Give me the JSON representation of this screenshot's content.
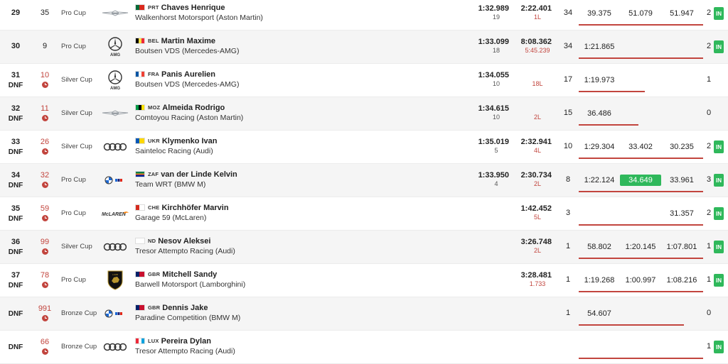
{
  "rows": [
    {
      "pos": "29",
      "dnf": "",
      "num": "35",
      "clock": false,
      "cup": "Pro Cup",
      "brand": "aston-martin",
      "cc": "PRT",
      "flag": [
        "#046a38",
        "#da291c"
      ],
      "name": "Chaves Henrique",
      "team": "Walkenhorst Motorsport (Aston Martin)",
      "best": "1:32.989",
      "bestLap": "19",
      "gap": "2:22.401",
      "gapSub": "1L",
      "laps": "34",
      "s1": "39.375",
      "s2": "51.079",
      "s3": "51.947",
      "s2green": false,
      "pits": "2",
      "in": true,
      "progress": 0.92
    },
    {
      "pos": "30",
      "dnf": "",
      "num": "9",
      "clock": false,
      "cup": "Pro Cup",
      "brand": "mercedes",
      "cc": "BEL",
      "flag": [
        "#000000",
        "#fae042",
        "#ed2939"
      ],
      "name": "Martin Maxime",
      "team": "Boutsen VDS (Mercedes-AMG)",
      "best": "1:33.099",
      "bestLap": "18",
      "gap": "8:08.362",
      "gapSub": "5:45.239",
      "laps": "34",
      "s1": "1:21.865",
      "s2": "",
      "s3": "",
      "s2green": false,
      "pits": "2",
      "in": true,
      "progress": 0.92
    },
    {
      "pos": "31",
      "dnf": "DNF",
      "num": "10",
      "clock": true,
      "cup": "Silver Cup",
      "brand": "mercedes",
      "cc": "FRA",
      "flag": [
        "#0055a4",
        "#ffffff",
        "#ef4135"
      ],
      "name": "Panis Aurelien",
      "team": "Boutsen VDS (Mercedes-AMG)",
      "best": "1:34.055",
      "bestLap": "10",
      "gap": "",
      "gapSub": "18L",
      "laps": "17",
      "s1": "1:19.973",
      "s2": "",
      "s3": "",
      "s2green": false,
      "pits": "1",
      "in": false,
      "progress": 0.49
    },
    {
      "pos": "32",
      "dnf": "DNF",
      "num": "11",
      "clock": true,
      "cup": "Silver Cup",
      "brand": "aston-martin",
      "cc": "MOZ",
      "flag": [
        "#009a44",
        "#000000",
        "#fce100"
      ],
      "name": "Almeida Rodrigo",
      "team": "Comtoyou Racing (Aston Martin)",
      "best": "1:34.615",
      "bestLap": "10",
      "gap": "",
      "gapSub": "2L",
      "laps": "15",
      "s1": "36.486",
      "s2": "",
      "s3": "",
      "s2green": false,
      "pits": "0",
      "in": false,
      "progress": 0.44
    },
    {
      "pos": "33",
      "dnf": "DNF",
      "num": "26",
      "clock": true,
      "cup": "Silver Cup",
      "brand": "audi",
      "cc": "UKR",
      "flag": [
        "#0057b7",
        "#ffd700"
      ],
      "name": "Klymenko Ivan",
      "team": "Sainteloc Racing (Audi)",
      "best": "1:35.019",
      "bestLap": "5",
      "gap": "2:32.941",
      "gapSub": "4L",
      "laps": "10",
      "s1": "1:29.304",
      "s2": "33.402",
      "s3": "30.235",
      "s2green": false,
      "pits": "2",
      "in": true,
      "progress": 0.92
    },
    {
      "pos": "34",
      "dnf": "DNF",
      "num": "32",
      "clock": true,
      "cup": "Pro Cup",
      "brand": "bmw",
      "cc": "ZAF",
      "flag": [
        "#007a4d",
        "#ffb612",
        "#de3831",
        "#002395"
      ],
      "name": "van der Linde Kelvin",
      "team": "Team WRT (BMW M)",
      "best": "1:33.950",
      "bestLap": "4",
      "gap": "2:30.734",
      "gapSub": "2L",
      "laps": "8",
      "s1": "1:22.124",
      "s2": "34.649",
      "s3": "33.961",
      "s2green": true,
      "pits": "3",
      "in": true,
      "progress": 0.92
    },
    {
      "pos": "35",
      "dnf": "DNF",
      "num": "59",
      "clock": true,
      "cup": "Pro Cup",
      "brand": "mclaren",
      "cc": "CHE",
      "flag": [
        "#d52b1e",
        "#ffffff"
      ],
      "name": "Kirchhöfer Marvin",
      "team": "Garage 59 (McLaren)",
      "best": "",
      "bestLap": "",
      "gap": "1:42.452",
      "gapSub": "5L",
      "laps": "3",
      "s1": "",
      "s2": "",
      "s3": "31.357",
      "s2green": false,
      "pits": "2",
      "in": true,
      "progress": 0.92
    },
    {
      "pos": "36",
      "dnf": "DNF",
      "num": "99",
      "clock": true,
      "cup": "Silver Cup",
      "brand": "audi",
      "cc": "ND",
      "flag": [
        "#ffffff",
        "#ffffff"
      ],
      "name": "Nesov Aleksei",
      "team": "Tresor Attempto Racing (Audi)",
      "best": "",
      "bestLap": "",
      "gap": "3:26.748",
      "gapSub": "2L",
      "laps": "1",
      "s1": "58.802",
      "s2": "1:20.145",
      "s3": "1:07.801",
      "s2green": false,
      "pits": "1",
      "in": true,
      "progress": 0.92
    },
    {
      "pos": "37",
      "dnf": "DNF",
      "num": "78",
      "clock": true,
      "cup": "Pro Cup",
      "brand": "lamborghini",
      "cc": "GBR",
      "flag": [
        "#012169",
        "#c8102e"
      ],
      "name": "Mitchell Sandy",
      "team": "Barwell Motorsport (Lamborghini)",
      "best": "",
      "bestLap": "",
      "gap": "3:28.481",
      "gapSub": "1.733",
      "laps": "1",
      "s1": "1:19.268",
      "s2": "1:00.997",
      "s3": "1:08.216",
      "s2green": false,
      "pits": "1",
      "in": true,
      "progress": 0.92
    },
    {
      "pos": "",
      "dnf": "DNF",
      "num": "991",
      "clock": true,
      "cup": "Bronze Cup",
      "brand": "bmw",
      "cc": "GBR",
      "flag": [
        "#012169",
        "#c8102e"
      ],
      "name": "Dennis Jake",
      "team": "Paradine Competition (BMW M)",
      "best": "",
      "bestLap": "",
      "gap": "",
      "gapSub": "",
      "laps": "1",
      "s1": "54.607",
      "s2": "",
      "s3": "",
      "s2green": false,
      "pits": "0",
      "in": false,
      "progress": 0.78
    },
    {
      "pos": "",
      "dnf": "DNF",
      "num": "66",
      "clock": true,
      "cup": "Bronze Cup",
      "brand": "audi",
      "cc": "LUX",
      "flag": [
        "#ed2939",
        "#ffffff",
        "#00a1de"
      ],
      "name": "Pereira Dylan",
      "team": "Tresor Attempto Racing (Audi)",
      "best": "",
      "bestLap": "",
      "gap": "",
      "gapSub": "",
      "laps": "",
      "s1": "",
      "s2": "",
      "s3": "",
      "s2green": false,
      "pits": "1",
      "in": true,
      "progress": 0.92
    }
  ],
  "in_label": "IN",
  "colors": {
    "accent_red": "#c2453e",
    "in_green": "#2fb85b",
    "row_alt": "#f5f5f5"
  }
}
